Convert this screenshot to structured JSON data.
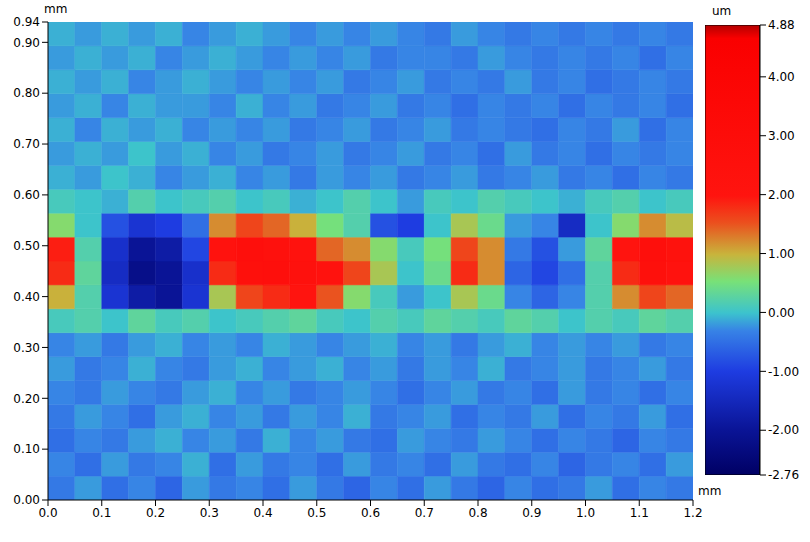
{
  "chart_data": {
    "type": "heatmap",
    "xlabel": "mm",
    "ylabel": "mm",
    "grid": false,
    "xlim": [
      0,
      1.2
    ],
    "ylim": [
      0,
      0.94
    ],
    "xticks": [
      {
        "value": 0,
        "label": "0.0"
      },
      0.1,
      0.2,
      0.3,
      0.4,
      0.5,
      0.6,
      0.7,
      0.8,
      0.9,
      {
        "value": 1,
        "label": "1.0"
      },
      1.1,
      1.2
    ],
    "yticks": [
      {
        "value": 0,
        "label": "0.00"
      },
      {
        "value": 0.1,
        "label": "0.10"
      },
      {
        "value": 0.2,
        "label": "0.20"
      },
      {
        "value": 0.3,
        "label": "0.30"
      },
      {
        "value": 0.4,
        "label": "0.40"
      },
      {
        "value": 0.5,
        "label": "0.50"
      },
      {
        "value": 0.6,
        "label": "0.60"
      },
      {
        "value": 0.7,
        "label": "0.70"
      },
      {
        "value": 0.8,
        "label": "0.80"
      },
      {
        "value": 0.9,
        "label": "0.90"
      },
      0.94
    ],
    "x_edges": [
      0,
      0.05,
      0.1,
      0.15,
      0.2,
      0.25,
      0.3,
      0.35,
      0.4,
      0.45,
      0.5,
      0.55,
      0.6,
      0.65,
      0.7,
      0.75,
      0.8,
      0.85,
      0.9,
      0.95,
      1.0,
      1.05,
      1.1,
      1.15,
      1.2
    ],
    "y_edges": [
      0,
      0.047,
      0.094,
      0.141,
      0.188,
      0.235,
      0.282,
      0.329,
      0.376,
      0.423,
      0.47,
      0.517,
      0.564,
      0.611,
      0.658,
      0.705,
      0.752,
      0.799,
      0.846,
      0.893,
      0.94
    ],
    "cells": [
      [
        -0.4,
        -0.2,
        -0.5,
        -0.3,
        -0.6,
        -0.2,
        -0.4,
        -0.3,
        -0.5,
        -0.2,
        -0.4,
        -0.6,
        -0.3,
        -0.5,
        -0.2,
        -0.4,
        -0.6,
        -0.3,
        -0.5,
        -0.4,
        -0.2,
        -0.5,
        -0.3,
        -0.4
      ],
      [
        -0.3,
        -0.5,
        -0.2,
        -0.4,
        -0.3,
        -0.1,
        -0.5,
        -0.2,
        -0.4,
        -0.3,
        -0.5,
        -0.2,
        -0.4,
        -0.3,
        -0.5,
        -0.2,
        -0.4,
        -0.5,
        -0.3,
        -0.6,
        -0.4,
        -0.3,
        -0.5,
        -0.2
      ],
      [
        -0.5,
        -0.3,
        -0.4,
        -0.2,
        -0.1,
        -0.3,
        -0.2,
        -0.4,
        -0.1,
        -0.3,
        -0.2,
        -0.4,
        -0.5,
        -0.2,
        -0.3,
        -0.4,
        -0.2,
        -0.3,
        -0.5,
        -0.3,
        -0.4,
        -0.6,
        -0.3,
        -0.4
      ],
      [
        -0.4,
        -0.2,
        -0.3,
        -0.5,
        -0.2,
        -0.1,
        -0.3,
        -0.2,
        -0.4,
        -0.2,
        -0.3,
        -0.1,
        -0.4,
        -0.3,
        -0.2,
        -0.5,
        -0.3,
        -0.4,
        -0.2,
        -0.5,
        -0.3,
        -0.4,
        -0.2,
        -0.5
      ],
      [
        -0.3,
        -0.4,
        -0.2,
        -0.3,
        -0.4,
        -0.2,
        -0.1,
        -0.3,
        -0.2,
        -0.4,
        -0.3,
        -0.2,
        -0.3,
        -0.5,
        -0.3,
        -0.2,
        -0.4,
        -0.3,
        -0.5,
        -0.2,
        -0.4,
        -0.3,
        -0.5,
        -0.3
      ],
      [
        -0.2,
        -0.4,
        -0.3,
        -0.1,
        -0.3,
        -0.4,
        -0.2,
        -0.1,
        -0.3,
        -0.2,
        -0.1,
        -0.3,
        -0.2,
        -0.4,
        -0.2,
        -0.3,
        -0.1,
        -0.4,
        -0.3,
        -0.2,
        -0.4,
        -0.3,
        -0.2,
        -0.4
      ],
      [
        -0.3,
        -0.2,
        -0.4,
        -0.2,
        -0.1,
        -0.3,
        -0.2,
        -0.3,
        -0.1,
        -0.2,
        -0.3,
        -0.2,
        -0.1,
        -0.3,
        -0.2,
        -0.4,
        -0.2,
        -0.1,
        -0.3,
        -0.2,
        -0.3,
        -0.2,
        -0.4,
        -0.3
      ],
      [
        0.1,
        0.2,
        0.0,
        0.3,
        0.1,
        0.2,
        0.0,
        0.1,
        0.2,
        0.3,
        0.1,
        0.0,
        0.2,
        0.1,
        0.3,
        0.2,
        0.1,
        0.3,
        0.2,
        0.0,
        0.2,
        0.1,
        0.3,
        0.2
      ],
      [
        1.0,
        0.2,
        -1.2,
        -1.8,
        -2.0,
        -1.2,
        0.8,
        1.6,
        1.8,
        2.0,
        1.5,
        0.6,
        0.1,
        -0.2,
        0.0,
        0.8,
        0.4,
        -0.3,
        -0.6,
        -0.3,
        0.2,
        1.2,
        1.6,
        1.4
      ],
      [
        1.8,
        0.3,
        -1.4,
        -2.2,
        -2.0,
        -1.3,
        1.8,
        2.5,
        2.6,
        2.4,
        2.2,
        1.6,
        0.8,
        0.0,
        0.4,
        1.8,
        1.2,
        -0.6,
        -0.9,
        -0.5,
        0.2,
        1.8,
        2.5,
        2.2
      ],
      [
        1.9,
        0.2,
        -1.3,
        -2.0,
        -1.8,
        -0.9,
        2.2,
        2.6,
        2.4,
        2.2,
        1.4,
        1.2,
        0.6,
        0.1,
        0.5,
        1.6,
        1.2,
        -0.4,
        -0.8,
        -0.2,
        0.3,
        2.0,
        2.6,
        2.3
      ],
      [
        0.6,
        0.0,
        -0.8,
        -1.2,
        -1.0,
        -0.5,
        1.2,
        1.6,
        1.4,
        1.0,
        0.5,
        0.2,
        -0.8,
        -1.0,
        0.0,
        0.8,
        0.4,
        -0.2,
        -0.3,
        -1.4,
        0.0,
        0.6,
        1.2,
        0.9
      ],
      [
        0.1,
        0.0,
        -0.1,
        0.2,
        0.0,
        0.1,
        0.2,
        0.0,
        0.1,
        -0.1,
        0.0,
        0.2,
        0.0,
        -0.2,
        0.1,
        0.0,
        0.2,
        0.1,
        0.0,
        -0.1,
        0.1,
        0.2,
        0.0,
        0.1
      ],
      [
        -0.1,
        -0.2,
        0.0,
        -0.1,
        -0.3,
        -0.2,
        -0.1,
        -0.3,
        -0.2,
        -0.4,
        -0.2,
        -0.3,
        -0.2,
        -0.4,
        -0.3,
        -0.2,
        -0.4,
        -0.3,
        -0.2,
        -0.4,
        -0.3,
        -0.5,
        -0.3,
        -0.4
      ],
      [
        -0.2,
        -0.1,
        -0.2,
        0.0,
        -0.2,
        -0.1,
        -0.3,
        -0.2,
        -0.4,
        -0.3,
        -0.2,
        -0.4,
        -0.3,
        -0.2,
        -0.4,
        -0.3,
        -0.5,
        -0.2,
        -0.4,
        -0.3,
        -0.5,
        -0.3,
        -0.4,
        -0.3
      ],
      [
        -0.1,
        -0.3,
        -0.1,
        -0.2,
        -0.1,
        -0.3,
        -0.2,
        -0.3,
        -0.2,
        -0.4,
        -0.3,
        -0.2,
        -0.4,
        -0.3,
        -0.2,
        -0.4,
        -0.3,
        -0.4,
        -0.5,
        -0.3,
        -0.4,
        -0.2,
        -0.5,
        -0.3
      ],
      [
        -0.2,
        -0.1,
        -0.3,
        -0.1,
        -0.2,
        -0.2,
        -0.3,
        -0.1,
        -0.3,
        -0.2,
        -0.4,
        -0.3,
        -0.2,
        -0.4,
        -0.3,
        -0.5,
        -0.3,
        -0.4,
        -0.3,
        -0.5,
        -0.3,
        -0.4,
        -0.3,
        -0.5
      ],
      [
        -0.1,
        -0.2,
        -0.1,
        -0.3,
        -0.2,
        -0.1,
        -0.2,
        -0.3,
        -0.2,
        -0.3,
        -0.2,
        -0.4,
        -0.3,
        -0.2,
        -0.4,
        -0.3,
        -0.4,
        -0.2,
        -0.4,
        -0.3,
        -0.5,
        -0.4,
        -0.3,
        -0.4
      ],
      [
        -0.2,
        -0.1,
        -0.2,
        -0.1,
        -0.3,
        -0.2,
        -0.1,
        -0.2,
        -0.3,
        -0.2,
        -0.3,
        -0.2,
        -0.4,
        -0.3,
        -0.3,
        -0.4,
        -0.2,
        -0.3,
        -0.4,
        -0.3,
        -0.4,
        -0.3,
        -0.5,
        -0.3
      ],
      [
        -0.1,
        -0.2,
        -0.1,
        -0.2,
        -0.1,
        -0.3,
        -0.2,
        -0.1,
        -0.2,
        -0.3,
        -0.2,
        -0.3,
        -0.2,
        -0.3,
        -0.4,
        -0.2,
        -0.3,
        -0.4,
        -0.3,
        -0.4,
        -0.3,
        -0.4,
        -0.3,
        -0.4
      ]
    ],
    "colorbar": {
      "label": "um",
      "range": [
        -2.76,
        4.88
      ],
      "ticks": [
        -2.76,
        {
          "value": -2,
          "label": "-2.00"
        },
        {
          "value": -1,
          "label": "-1.00"
        },
        {
          "value": 0,
          "label": "0.00"
        },
        {
          "value": 1,
          "label": "1.00"
        },
        {
          "value": 2,
          "label": "2.00"
        },
        {
          "value": 3,
          "label": "3.00"
        },
        {
          "value": 4,
          "label": "4.00"
        },
        4.88
      ]
    }
  }
}
